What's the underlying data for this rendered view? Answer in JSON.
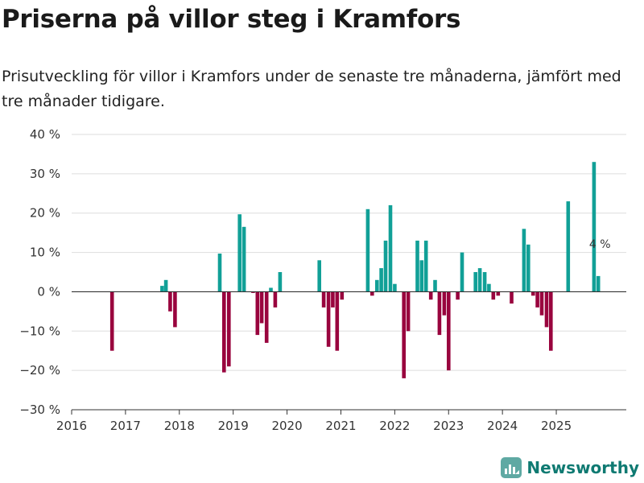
{
  "title": "Priserna på villor steg i Kramfors",
  "subtitle": "Prisutveckling för villor i Kramfors under de senaste tre månaderna, jämfört med tre månader tidigare.",
  "brand": {
    "name": "Newsworthy",
    "icon": "newsworthy-logo-icon"
  },
  "colors": {
    "positive": "#11a097",
    "negative": "#99043e",
    "grid": "#dddddd",
    "axis": "#333333",
    "brand": "#0f7a72"
  },
  "chart_data": {
    "type": "bar",
    "title": "Priserna på villor steg i Kramfors",
    "xlabel": "",
    "ylabel": "",
    "ylim": [
      -30,
      40
    ],
    "y_ticks": [
      40,
      30,
      20,
      10,
      0,
      -10,
      -20,
      -30
    ],
    "y_tick_labels": [
      "40 %",
      "30 %",
      "20 %",
      "10 %",
      "0 %",
      "−10 %",
      "−20 %",
      "−30 %"
    ],
    "x_range": [
      2016,
      2026.3
    ],
    "x_ticks": [
      2016,
      2017,
      2018,
      2019,
      2020,
      2021,
      2022,
      2023,
      2024,
      2025
    ],
    "x_tick_labels": [
      "2016",
      "2017",
      "2018",
      "2019",
      "2020",
      "2021",
      "2022",
      "2023",
      "2024",
      "2025"
    ],
    "grid": true,
    "unit": "%",
    "series": [
      {
        "name": "Prisutveckling",
        "points": [
          {
            "x": "2016-10",
            "t": 2016.75,
            "y": -15
          },
          {
            "x": "2017-09",
            "t": 2017.68,
            "y": 1.5
          },
          {
            "x": "2017-10",
            "t": 2017.75,
            "y": 3
          },
          {
            "x": "2017-11",
            "t": 2017.83,
            "y": -5
          },
          {
            "x": "2017-12",
            "t": 2017.92,
            "y": -9
          },
          {
            "x": "2018-10",
            "t": 2018.75,
            "y": 9.7
          },
          {
            "x": "2018-11",
            "t": 2018.83,
            "y": -20.5
          },
          {
            "x": "2018-12",
            "t": 2018.92,
            "y": -19
          },
          {
            "x": "2019-02",
            "t": 2019.12,
            "y": 19.7
          },
          {
            "x": "2019-03",
            "t": 2019.2,
            "y": 16.5
          },
          {
            "x": "2019-05",
            "t": 2019.37,
            "y": -0.3
          },
          {
            "x": "2019-06",
            "t": 2019.45,
            "y": -11
          },
          {
            "x": "2019-07",
            "t": 2019.53,
            "y": -8
          },
          {
            "x": "2019-08",
            "t": 2019.62,
            "y": -13
          },
          {
            "x": "2019-09",
            "t": 2019.7,
            "y": 1
          },
          {
            "x": "2019-10",
            "t": 2019.78,
            "y": -4
          },
          {
            "x": "2019-11",
            "t": 2019.87,
            "y": 5
          },
          {
            "x": "2020-08",
            "t": 2020.6,
            "y": 8
          },
          {
            "x": "2020-09",
            "t": 2020.68,
            "y": -4
          },
          {
            "x": "2020-10",
            "t": 2020.77,
            "y": -14
          },
          {
            "x": "2020-11",
            "t": 2020.85,
            "y": -4
          },
          {
            "x": "2020-12",
            "t": 2020.93,
            "y": -15
          },
          {
            "x": "2021-01",
            "t": 2021.02,
            "y": -2
          },
          {
            "x": "2021-07",
            "t": 2021.5,
            "y": 21
          },
          {
            "x": "2021-08",
            "t": 2021.58,
            "y": -1
          },
          {
            "x": "2021-09",
            "t": 2021.67,
            "y": 3
          },
          {
            "x": "2021-10",
            "t": 2021.75,
            "y": 6
          },
          {
            "x": "2021-11",
            "t": 2021.83,
            "y": 13
          },
          {
            "x": "2021-12",
            "t": 2021.92,
            "y": 22
          },
          {
            "x": "2022-01",
            "t": 2022.0,
            "y": 2
          },
          {
            "x": "2022-03",
            "t": 2022.17,
            "y": -22
          },
          {
            "x": "2022-04",
            "t": 2022.25,
            "y": -10
          },
          {
            "x": "2022-06",
            "t": 2022.42,
            "y": 13
          },
          {
            "x": "2022-07",
            "t": 2022.5,
            "y": 8
          },
          {
            "x": "2022-08",
            "t": 2022.58,
            "y": 13
          },
          {
            "x": "2022-09",
            "t": 2022.67,
            "y": -2
          },
          {
            "x": "2022-10",
            "t": 2022.75,
            "y": 3
          },
          {
            "x": "2022-11",
            "t": 2022.83,
            "y": -11
          },
          {
            "x": "2022-12",
            "t": 2022.92,
            "y": -6
          },
          {
            "x": "2023-01",
            "t": 2023.0,
            "y": -20
          },
          {
            "x": "2023-03",
            "t": 2023.17,
            "y": -2
          },
          {
            "x": "2023-04",
            "t": 2023.25,
            "y": 10
          },
          {
            "x": "2023-07",
            "t": 2023.5,
            "y": 5
          },
          {
            "x": "2023-08",
            "t": 2023.58,
            "y": 6
          },
          {
            "x": "2023-09",
            "t": 2023.67,
            "y": 5
          },
          {
            "x": "2023-10",
            "t": 2023.75,
            "y": 2
          },
          {
            "x": "2023-11",
            "t": 2023.83,
            "y": -2
          },
          {
            "x": "2023-12",
            "t": 2023.92,
            "y": -1
          },
          {
            "x": "2024-03",
            "t": 2024.17,
            "y": -3
          },
          {
            "x": "2024-05",
            "t": 2024.4,
            "y": 16
          },
          {
            "x": "2024-06",
            "t": 2024.48,
            "y": 12
          },
          {
            "x": "2024-07",
            "t": 2024.57,
            "y": -1
          },
          {
            "x": "2024-08",
            "t": 2024.65,
            "y": -4
          },
          {
            "x": "2024-09",
            "t": 2024.73,
            "y": -6
          },
          {
            "x": "2024-10",
            "t": 2024.82,
            "y": -9
          },
          {
            "x": "2024-11",
            "t": 2024.9,
            "y": -15
          },
          {
            "x": "2025-03",
            "t": 2025.22,
            "y": 23
          },
          {
            "x": "2025-09",
            "t": 2025.7,
            "y": 33
          },
          {
            "x": "2025-10",
            "t": 2025.78,
            "y": 4
          }
        ]
      }
    ],
    "annotations": [
      {
        "text": "4 %",
        "t": 2025.78,
        "y": 4
      }
    ]
  }
}
